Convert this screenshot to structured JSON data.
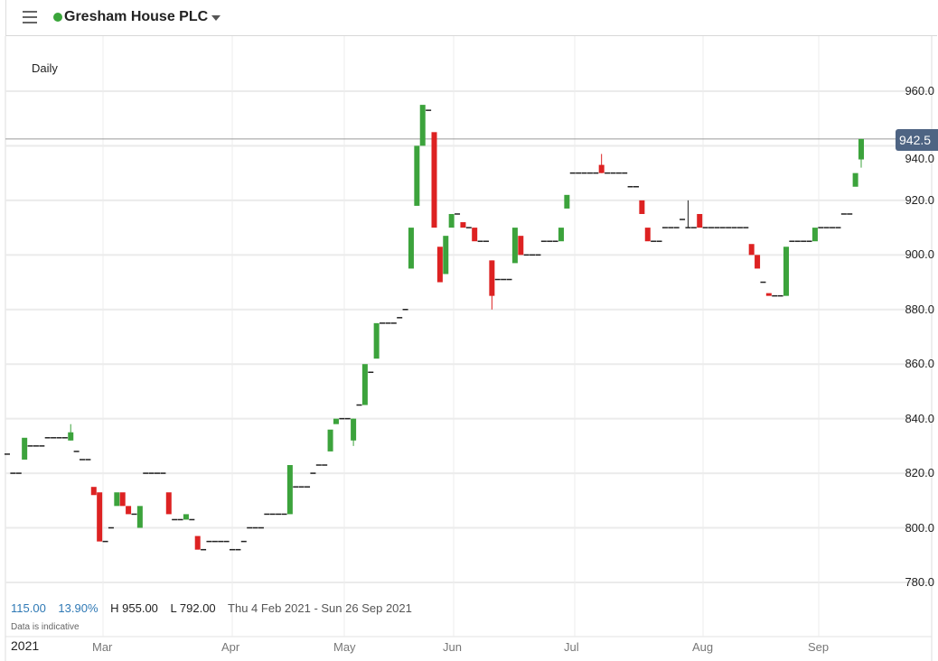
{
  "header": {
    "title": "Gresham House PLC",
    "status_color": "#3aa53a"
  },
  "period": "Daily",
  "stats": {
    "change": "115.00",
    "change_pct": "13.90%",
    "high": "H 955.00",
    "low": "L 792.00",
    "range": "Thu 4 Feb 2021 - Sun 26 Sep 2021",
    "note": "Data is indicative"
  },
  "chart_data": {
    "type": "candlestick",
    "ylim": [
      770,
      970
    ],
    "y_ticks": [
      "960.0",
      "940.0",
      "920.0",
      "900.0",
      "880.0",
      "860.0",
      "840.0",
      "820.0",
      "800.0",
      "780.0"
    ],
    "x_ticks": [
      "2021",
      "Mar",
      "Apr",
      "May",
      "Jun",
      "Jul",
      "Aug",
      "Sep"
    ],
    "last_price": "942.5",
    "up_color": "#3ca33c",
    "down_color": "#dd2222",
    "candles": [
      [
        827,
        827,
        827,
        827
      ],
      [
        820,
        820,
        820,
        820
      ],
      [
        820,
        820,
        820,
        820
      ],
      [
        825,
        833,
        825,
        833
      ],
      [
        830,
        830,
        830,
        830
      ],
      [
        830,
        830,
        830,
        830
      ],
      [
        830,
        830,
        830,
        830
      ],
      [
        833,
        833,
        833,
        833
      ],
      [
        833,
        833,
        833,
        833
      ],
      [
        833,
        833,
        833,
        833
      ],
      [
        833,
        833,
        833,
        833
      ],
      [
        832,
        838,
        832,
        835
      ],
      [
        828,
        828,
        828,
        828
      ],
      [
        825,
        825,
        825,
        825
      ],
      [
        825,
        825,
        825,
        825
      ],
      [
        815,
        815,
        812,
        812
      ],
      [
        813,
        813,
        795,
        795
      ],
      [
        795,
        795,
        795,
        795
      ],
      [
        800,
        800,
        800,
        800
      ],
      [
        808,
        813,
        808,
        813
      ],
      [
        813,
        813,
        808,
        808
      ],
      [
        808,
        808,
        805,
        805
      ],
      [
        805,
        805,
        805,
        805
      ],
      [
        800,
        808,
        800,
        808
      ],
      [
        820,
        820,
        820,
        820
      ],
      [
        820,
        820,
        820,
        820
      ],
      [
        820,
        820,
        820,
        820
      ],
      [
        820,
        820,
        820,
        820
      ],
      [
        813,
        813,
        805,
        805
      ],
      [
        803,
        803,
        803,
        803
      ],
      [
        803,
        803,
        803,
        803
      ],
      [
        803,
        805,
        803,
        805
      ],
      [
        803,
        803,
        803,
        803
      ],
      [
        797,
        797,
        792,
        792
      ],
      [
        792,
        792,
        792,
        792
      ],
      [
        795,
        795,
        795,
        795
      ],
      [
        795,
        795,
        795,
        795
      ],
      [
        795,
        795,
        795,
        795
      ],
      [
        795,
        795,
        795,
        795
      ],
      [
        792,
        792,
        792,
        792
      ],
      [
        792,
        792,
        792,
        792
      ],
      [
        795,
        795,
        795,
        795
      ],
      [
        800,
        800,
        800,
        800
      ],
      [
        800,
        800,
        800,
        800
      ],
      [
        800,
        800,
        800,
        800
      ],
      [
        805,
        805,
        805,
        805
      ],
      [
        805,
        805,
        805,
        805
      ],
      [
        805,
        805,
        805,
        805
      ],
      [
        805,
        805,
        805,
        805
      ],
      [
        805,
        823,
        805,
        823
      ],
      [
        815,
        815,
        815,
        815
      ],
      [
        815,
        815,
        815,
        815
      ],
      [
        815,
        815,
        815,
        815
      ],
      [
        820,
        820,
        820,
        820
      ],
      [
        823,
        823,
        823,
        823
      ],
      [
        823,
        823,
        823,
        823
      ],
      [
        828,
        836,
        828,
        836
      ],
      [
        838,
        840,
        838,
        840
      ],
      [
        840,
        840,
        840,
        840
      ],
      [
        840,
        840,
        840,
        840
      ],
      [
        832,
        840,
        830,
        840
      ],
      [
        845,
        845,
        845,
        845
      ],
      [
        845,
        860,
        845,
        860
      ],
      [
        857,
        857,
        857,
        857
      ],
      [
        862,
        875,
        862,
        875
      ],
      [
        875,
        875,
        875,
        875
      ],
      [
        875,
        875,
        875,
        875
      ],
      [
        875,
        875,
        875,
        875
      ],
      [
        877,
        877,
        877,
        877
      ],
      [
        880,
        880,
        880,
        880
      ],
      [
        895,
        910,
        895,
        910
      ],
      [
        918,
        940,
        918,
        940
      ],
      [
        940,
        955,
        940,
        955
      ],
      [
        953,
        953,
        953,
        953
      ],
      [
        945,
        945,
        910,
        910
      ],
      [
        903,
        903,
        890,
        890
      ],
      [
        893,
        907,
        893,
        907
      ],
      [
        910,
        915,
        910,
        915
      ],
      [
        915,
        915,
        915,
        915
      ],
      [
        912,
        912,
        910,
        910
      ],
      [
        910,
        910,
        910,
        910
      ],
      [
        910,
        910,
        905,
        905
      ],
      [
        905,
        905,
        905,
        905
      ],
      [
        905,
        905,
        905,
        905
      ],
      [
        898,
        898,
        880,
        885
      ],
      [
        891,
        891,
        891,
        891
      ],
      [
        891,
        891,
        891,
        891
      ],
      [
        891,
        891,
        891,
        891
      ],
      [
        897,
        910,
        897,
        910
      ],
      [
        907,
        907,
        900,
        900
      ],
      [
        900,
        900,
        900,
        900
      ],
      [
        900,
        900,
        900,
        900
      ],
      [
        900,
        900,
        900,
        900
      ],
      [
        905,
        905,
        905,
        905
      ],
      [
        905,
        905,
        905,
        905
      ],
      [
        905,
        905,
        905,
        905
      ],
      [
        905,
        910,
        905,
        910
      ],
      [
        917,
        922,
        917,
        922
      ],
      [
        930,
        930,
        930,
        930
      ],
      [
        930,
        930,
        930,
        930
      ],
      [
        930,
        930,
        930,
        930
      ],
      [
        930,
        930,
        930,
        930
      ],
      [
        930,
        930,
        930,
        930
      ],
      [
        933,
        937,
        930,
        930
      ],
      [
        930,
        930,
        930,
        930
      ],
      [
        930,
        930,
        930,
        930
      ],
      [
        930,
        930,
        930,
        930
      ],
      [
        930,
        930,
        930,
        930
      ],
      [
        925,
        925,
        925,
        925
      ],
      [
        925,
        925,
        925,
        925
      ],
      [
        920,
        920,
        915,
        915
      ],
      [
        910,
        910,
        905,
        905
      ],
      [
        905,
        905,
        905,
        905
      ],
      [
        905,
        905,
        905,
        905
      ],
      [
        910,
        910,
        910,
        910
      ],
      [
        910,
        910,
        910,
        910
      ],
      [
        910,
        910,
        910,
        910
      ],
      [
        913,
        913,
        913,
        913
      ],
      [
        910,
        920,
        910,
        910
      ],
      [
        910,
        910,
        910,
        910
      ],
      [
        915,
        915,
        910,
        910
      ],
      [
        910,
        910,
        910,
        910
      ],
      [
        910,
        910,
        910,
        910
      ],
      [
        910,
        910,
        910,
        910
      ],
      [
        910,
        910,
        910,
        910
      ],
      [
        910,
        910,
        910,
        910
      ],
      [
        910,
        910,
        910,
        910
      ],
      [
        910,
        910,
        910,
        910
      ],
      [
        910,
        910,
        910,
        910
      ],
      [
        904,
        904,
        900,
        900
      ],
      [
        900,
        900,
        895,
        895
      ],
      [
        890,
        890,
        890,
        890
      ],
      [
        886,
        886,
        885,
        885
      ],
      [
        885,
        885,
        885,
        885
      ],
      [
        885,
        885,
        885,
        885
      ],
      [
        885,
        903,
        885,
        903
      ],
      [
        905,
        905,
        905,
        905
      ],
      [
        905,
        905,
        905,
        905
      ],
      [
        905,
        905,
        905,
        905
      ],
      [
        905,
        905,
        905,
        905
      ],
      [
        905,
        910,
        905,
        910
      ],
      [
        910,
        910,
        910,
        910
      ],
      [
        910,
        910,
        910,
        910
      ],
      [
        910,
        910,
        910,
        910
      ],
      [
        910,
        910,
        910,
        910
      ],
      [
        915,
        915,
        915,
        915
      ],
      [
        915,
        915,
        915,
        915
      ],
      [
        925,
        930,
        925,
        930
      ],
      [
        935,
        942.5,
        932,
        942.5
      ]
    ]
  }
}
